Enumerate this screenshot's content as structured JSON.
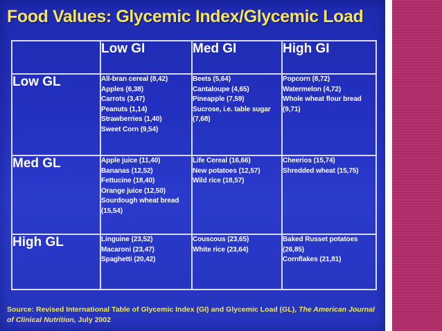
{
  "title": "Food Values: Glycemic Index/Glycemic Load",
  "table": {
    "column_headers": [
      "Low GI",
      "Med GI",
      "High GI"
    ],
    "rows": [
      {
        "label": "Low GL",
        "cells": [
          [
            "All-bran cereal (8,42)",
            "Apples (6,38)",
            "Carrots (3,47)",
            "Peanuts (1,14)",
            "Strawberries (1,40)",
            "Sweet Corn (9,54)"
          ],
          [
            "Beets (5,64)",
            "Cantaloupe (4,65)",
            "Pineapple (7,59)",
            "Sucrose, i.e. table sugar (7,68)"
          ],
          [
            "Popcorn (8,72)",
            "Watermelon (4,72)",
            "Whole wheat flour bread (9,71)"
          ]
        ]
      },
      {
        "label": "Med GL",
        "cells": [
          [
            "Apple juice (11,40)",
            "Bananas (12,52)",
            "Fettucine (18,40)",
            "Orange juice (12,50)",
            "Sourdough wheat bread (15,54)"
          ],
          [
            "Life Cereal (16,66)",
            "New potatoes (12,57)",
            "Wild rice (18,57)"
          ],
          [
            "Cheerios (15,74)",
            "Shredded wheat (15,75)"
          ]
        ]
      },
      {
        "label": "High GL",
        "cells": [
          [
            "Linguine (23,52)",
            "Macaroni (23,47)",
            "Spaghetti (20,42)"
          ],
          [
            "Couscous (23,65)",
            "White rice (23,64)"
          ],
          [
            "Baked Russet potatoes (26,85)",
            "Cornflakes (21,81)"
          ]
        ]
      }
    ]
  },
  "source": {
    "prefix": "Source:  Revised International Table of Glycemic Index (GI) and Glycemic Load (GL), ",
    "journal": "The American Journal of Clinical Nutrition,",
    "suffix": " July 2002"
  },
  "colors": {
    "slide_background": "#2431c0",
    "title_text": "#f4e55a",
    "table_border": "#d9dcf0",
    "body_text": "#ffffff",
    "side_panel": "#b3336e"
  }
}
